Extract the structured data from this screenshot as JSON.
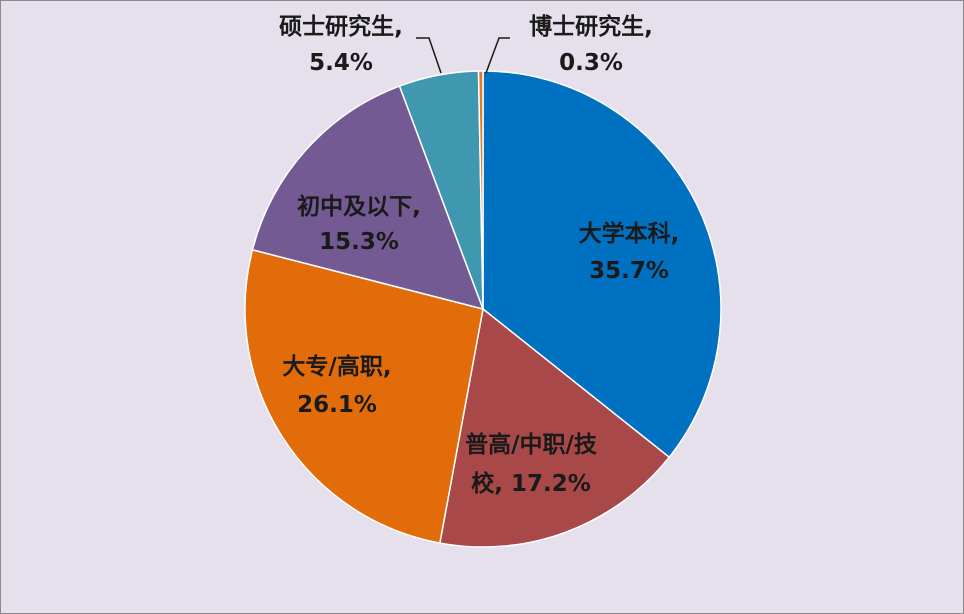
{
  "chart_data": {
    "type": "pie",
    "title": "",
    "slices": [
      {
        "label_lines": [
          "大学本科,",
          "35.7%"
        ],
        "category": "大学本科",
        "value": 35.7,
        "percent_label": "35.7%",
        "color": "#0070c0"
      },
      {
        "label_lines": [
          "普高/中职/技",
          "校, 17.2%"
        ],
        "category": "普高/中职/技校",
        "value": 17.2,
        "percent_label": "17.2%",
        "color": "#a84848"
      },
      {
        "label_lines": [
          "大专/高职,",
          "26.1%"
        ],
        "category": "大专/高职",
        "value": 26.1,
        "percent_label": "26.1%",
        "color": "#e36c0a"
      },
      {
        "label_lines": [
          "初中及以下,",
          "15.3%"
        ],
        "category": "初中及以下",
        "value": 15.3,
        "percent_label": "15.3%",
        "color": "#735a92"
      },
      {
        "label_lines": [
          "硕士研究生,",
          "5.4%"
        ],
        "category": "硕士研究生",
        "value": 5.4,
        "percent_label": "5.4%",
        "color": "#4097b0"
      },
      {
        "label_lines": [
          "博士研究生,",
          "0.3%"
        ],
        "category": "博士研究生",
        "value": 0.3,
        "percent_label": "0.3%",
        "color": "#e07b2a"
      }
    ],
    "legend": "none"
  }
}
